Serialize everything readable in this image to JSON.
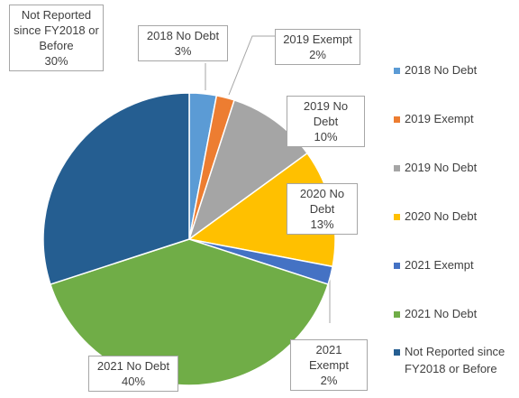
{
  "chart_data": {
    "type": "pie",
    "categories": [
      "2018 No Debt",
      "2019 Exempt",
      "2019 No Debt",
      "2020 No Debt",
      "2021 Exempt",
      "2021 No Debt",
      "Not Reported since FY2018 or Before"
    ],
    "values": [
      3,
      2,
      10,
      13,
      2,
      40,
      30
    ],
    "value_labels": [
      "3%",
      "2%",
      "10%",
      "13%",
      "2%",
      "40%",
      "30%"
    ],
    "colors": [
      "#5b9bd5",
      "#ed7d31",
      "#a5a5a5",
      "#ffc000",
      "#4472c4",
      "#70ad47",
      "#255e91"
    ],
    "legend": "right"
  }
}
